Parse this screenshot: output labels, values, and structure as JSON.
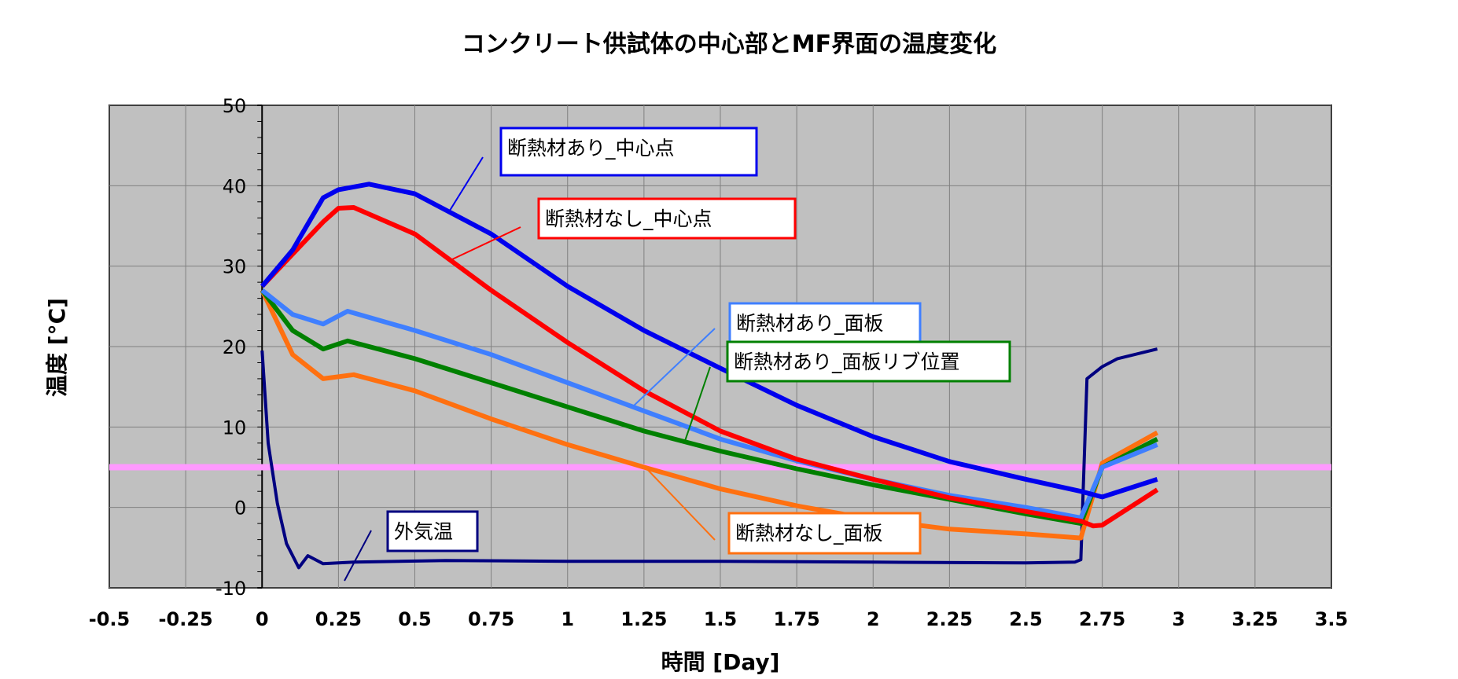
{
  "chart_data": {
    "type": "line",
    "title": "コンクリート供試体の中心部とMF界面の温度変化",
    "xlabel": "時間 [Day]",
    "ylabel": "温度 [°C]",
    "xlim": [
      -0.5,
      3.5
    ],
    "ylim": [
      -10,
      50
    ],
    "xticks": [
      "-0.5",
      "-0.25",
      "0",
      "0.25",
      "0.5",
      "0.75",
      "1",
      "1.25",
      "1.5",
      "1.75",
      "2",
      "2.25",
      "2.5",
      "2.75",
      "3",
      "3.25",
      "3.5"
    ],
    "yticks": [
      "-10",
      "0",
      "10",
      "20",
      "30",
      "40",
      "50"
    ],
    "grid": true,
    "plot_background": "#c0c0c0",
    "reference_line": {
      "y": 5,
      "color": "#ff99ff"
    },
    "series": [
      {
        "name": "断熱材あり_中心点",
        "color": "#0000ee",
        "x": [
          0,
          0.1,
          0.2,
          0.25,
          0.35,
          0.5,
          0.75,
          1.0,
          1.25,
          1.5,
          1.75,
          2.0,
          2.25,
          2.5,
          2.68,
          2.75,
          2.93
        ],
        "y": [
          27.5,
          32,
          38.5,
          39.5,
          40.2,
          39,
          34,
          27.5,
          22,
          17.3,
          12.7,
          8.8,
          5.7,
          3.5,
          2,
          1.3,
          3.5
        ]
      },
      {
        "name": "断熱材なし_中心点",
        "color": "#ff0000",
        "x": [
          0,
          0.1,
          0.2,
          0.25,
          0.3,
          0.5,
          0.75,
          1.0,
          1.25,
          1.5,
          1.75,
          2.0,
          2.25,
          2.5,
          2.68,
          2.72,
          2.75,
          2.93
        ],
        "y": [
          27.5,
          31.5,
          35.5,
          37.2,
          37.3,
          34,
          27,
          20.5,
          14.5,
          9.5,
          6,
          3.5,
          1.2,
          -0.5,
          -1.7,
          -2.3,
          -2.2,
          2.2
        ]
      },
      {
        "name": "断熱材あり_面板",
        "color": "#3f7fff",
        "x": [
          0,
          0.1,
          0.2,
          0.28,
          0.5,
          0.75,
          1.0,
          1.25,
          1.5,
          1.75,
          2.0,
          2.25,
          2.5,
          2.68,
          2.75,
          2.93
        ],
        "y": [
          27,
          24,
          22.8,
          24.4,
          22,
          19,
          15.5,
          12,
          8.5,
          5.8,
          3.5,
          1.5,
          0,
          -1.3,
          5,
          7.8
        ]
      },
      {
        "name": "断熱材あり_面板リブ位置",
        "color": "#008000",
        "x": [
          0,
          0.1,
          0.2,
          0.28,
          0.5,
          0.75,
          1.0,
          1.25,
          1.5,
          1.75,
          2.0,
          2.25,
          2.5,
          2.68,
          2.75,
          2.93
        ],
        "y": [
          27,
          22,
          19.7,
          20.7,
          18.5,
          15.5,
          12.5,
          9.5,
          7,
          4.8,
          2.8,
          1,
          -0.8,
          -2,
          5,
          8.5
        ]
      },
      {
        "name": "断熱材なし_面板",
        "color": "#ff7010",
        "x": [
          0,
          0.1,
          0.2,
          0.3,
          0.5,
          0.75,
          1.0,
          1.25,
          1.5,
          1.75,
          2.0,
          2.25,
          2.5,
          2.68,
          2.75,
          2.93
        ],
        "y": [
          27,
          19,
          16,
          16.5,
          14.5,
          11,
          7.8,
          5,
          2.3,
          0.2,
          -1.5,
          -2.7,
          -3.3,
          -3.8,
          5.5,
          9.3
        ]
      },
      {
        "name": "外気温",
        "color": "#000080",
        "x": [
          0,
          0.02,
          0.05,
          0.08,
          0.12,
          0.15,
          0.2,
          0.3,
          0.6,
          1.0,
          1.5,
          2.0,
          2.5,
          2.66,
          2.68,
          2.7,
          2.75,
          2.8,
          2.93
        ],
        "y": [
          19.5,
          8,
          0.5,
          -4.5,
          -7.5,
          -6,
          -7,
          -6.8,
          -6.6,
          -6.7,
          -6.7,
          -6.8,
          -6.9,
          -6.8,
          -6.5,
          16,
          17.5,
          18.5,
          19.7
        ]
      }
    ]
  }
}
